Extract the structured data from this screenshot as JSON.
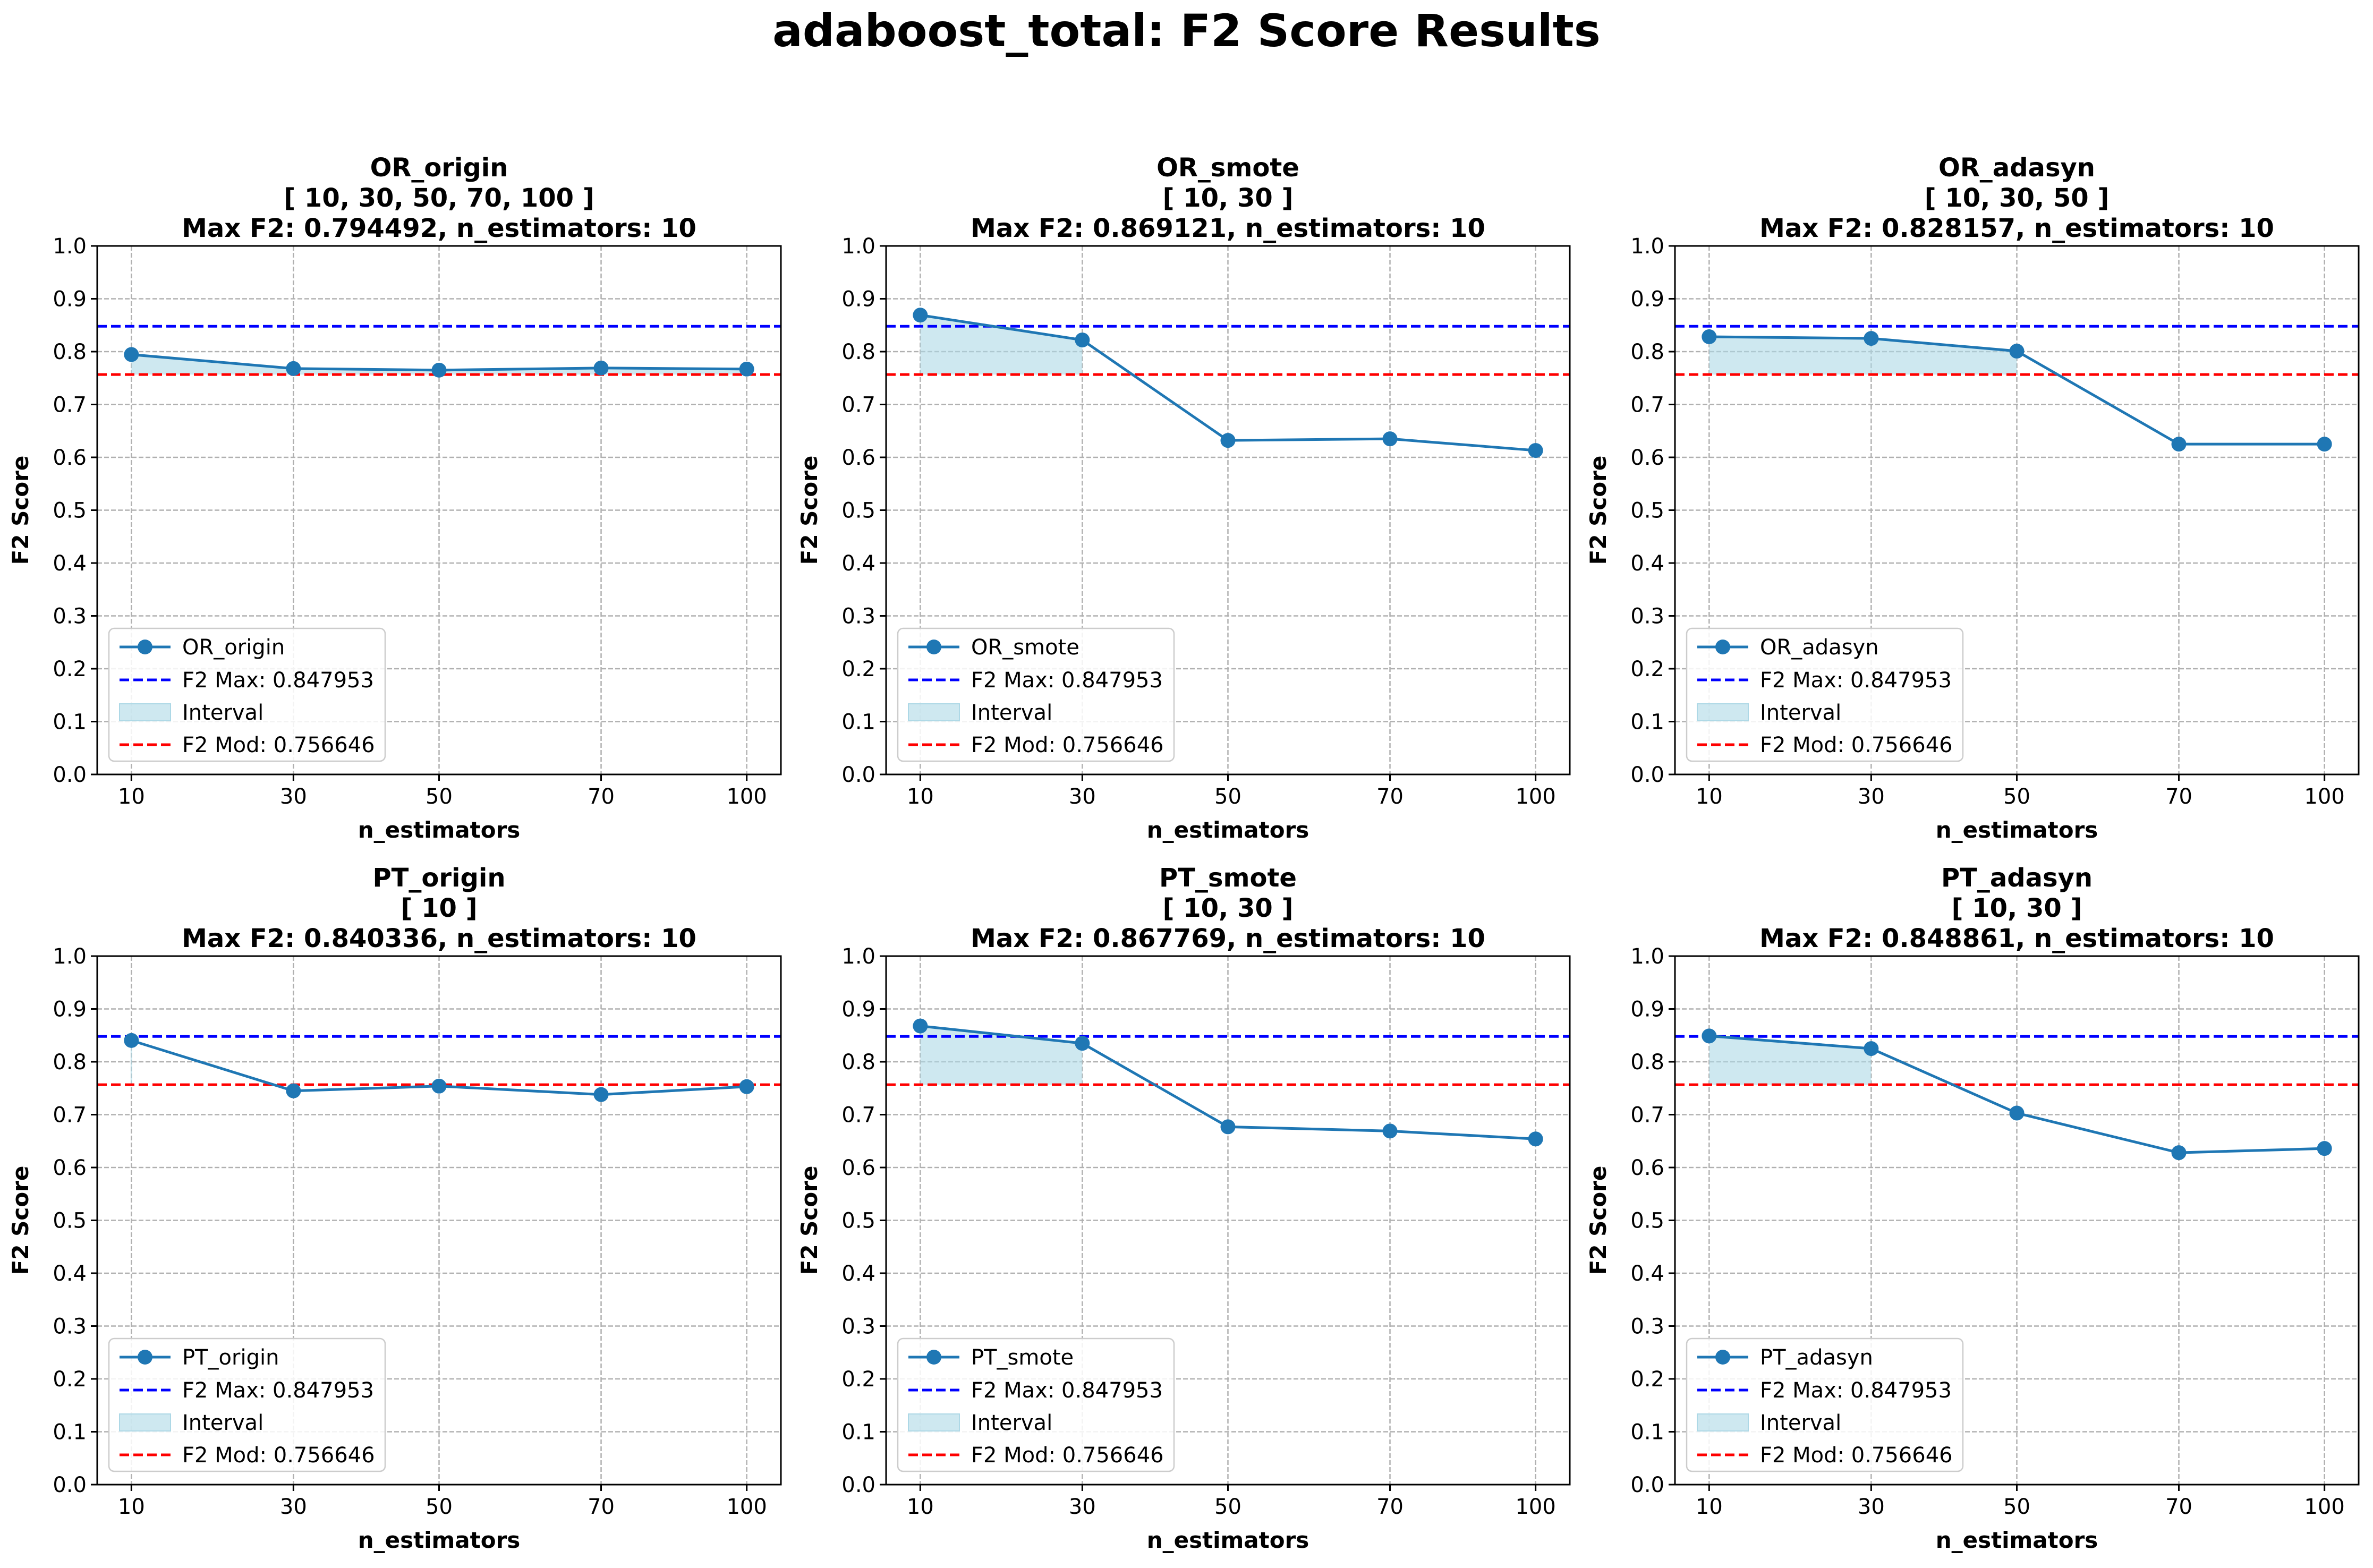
{
  "figure": {
    "title": "adaboost_total: F2 Score Results"
  },
  "colors": {
    "series_line": "#1f77b4",
    "interval_fill": "#add8e6",
    "f2_max_line": "#0000ff",
    "f2_mod_line": "#ff0000",
    "grid": "#b0b0b0"
  },
  "chart_data": [
    {
      "type": "line",
      "title_lines": [
        "OR_origin",
        "[ 10, 30, 50, 70, 100 ]",
        "Max F2: 0.794492, n_estimators: 10"
      ],
      "xlabel": "n_estimators",
      "ylabel": "F2 Score",
      "x": [
        "10",
        "30",
        "50",
        "70",
        "100"
      ],
      "ylim": [
        0,
        1.0
      ],
      "yticks": [
        "0.0",
        "0.1",
        "0.2",
        "0.3",
        "0.4",
        "0.5",
        "0.6",
        "0.7",
        "0.8",
        "0.9",
        "1.0"
      ],
      "series": [
        {
          "name": "OR_origin",
          "values": [
            0.794492,
            0.768,
            0.765,
            0.769,
            0.767
          ]
        }
      ],
      "f2_max": {
        "label": "F2 Max: 0.847953",
        "value": 0.847953
      },
      "f2_mod": {
        "label": "F2 Mod: 0.756646",
        "value": 0.756646
      },
      "interval": {
        "label": "Interval",
        "x_index_range": [
          0,
          4
        ]
      },
      "grid": true,
      "legend_position": "lower-left"
    },
    {
      "type": "line",
      "title_lines": [
        "OR_smote",
        "[ 10, 30 ]",
        "Max F2: 0.869121, n_estimators: 10"
      ],
      "xlabel": "n_estimators",
      "ylabel": "F2 Score",
      "x": [
        "10",
        "30",
        "50",
        "70",
        "100"
      ],
      "ylim": [
        0,
        1.0
      ],
      "yticks": [
        "0.0",
        "0.1",
        "0.2",
        "0.3",
        "0.4",
        "0.5",
        "0.6",
        "0.7",
        "0.8",
        "0.9",
        "1.0"
      ],
      "series": [
        {
          "name": "OR_smote",
          "values": [
            0.869121,
            0.822,
            0.632,
            0.635,
            0.613
          ]
        }
      ],
      "f2_max": {
        "label": "F2 Max: 0.847953",
        "value": 0.847953
      },
      "f2_mod": {
        "label": "F2 Mod: 0.756646",
        "value": 0.756646
      },
      "interval": {
        "label": "Interval",
        "x_index_range": [
          0,
          1
        ]
      },
      "grid": true,
      "legend_position": "lower-left"
    },
    {
      "type": "line",
      "title_lines": [
        "OR_adasyn",
        "[ 10, 30, 50 ]",
        "Max F2: 0.828157, n_estimators: 10"
      ],
      "xlabel": "n_estimators",
      "ylabel": "F2 Score",
      "x": [
        "10",
        "30",
        "50",
        "70",
        "100"
      ],
      "ylim": [
        0,
        1.0
      ],
      "yticks": [
        "0.0",
        "0.1",
        "0.2",
        "0.3",
        "0.4",
        "0.5",
        "0.6",
        "0.7",
        "0.8",
        "0.9",
        "1.0"
      ],
      "series": [
        {
          "name": "OR_adasyn",
          "values": [
            0.828157,
            0.825,
            0.801,
            0.625,
            0.625
          ]
        }
      ],
      "f2_max": {
        "label": "F2 Max: 0.847953",
        "value": 0.847953
      },
      "f2_mod": {
        "label": "F2 Mod: 0.756646",
        "value": 0.756646
      },
      "interval": {
        "label": "Interval",
        "x_index_range": [
          0,
          2
        ]
      },
      "grid": true,
      "legend_position": "lower-left"
    },
    {
      "type": "line",
      "title_lines": [
        "PT_origin",
        "[ 10 ]",
        "Max F2: 0.840336, n_estimators: 10"
      ],
      "xlabel": "n_estimators",
      "ylabel": "F2 Score",
      "x": [
        "10",
        "30",
        "50",
        "70",
        "100"
      ],
      "ylim": [
        0,
        1.0
      ],
      "yticks": [
        "0.0",
        "0.1",
        "0.2",
        "0.3",
        "0.4",
        "0.5",
        "0.6",
        "0.7",
        "0.8",
        "0.9",
        "1.0"
      ],
      "series": [
        {
          "name": "PT_origin",
          "values": [
            0.840336,
            0.745,
            0.754,
            0.738,
            0.753
          ]
        }
      ],
      "f2_max": {
        "label": "F2 Max: 0.847953",
        "value": 0.847953
      },
      "f2_mod": {
        "label": "F2 Mod: 0.756646",
        "value": 0.756646
      },
      "interval": {
        "label": "Interval",
        "x_index_range": [
          0,
          0
        ]
      },
      "grid": true,
      "legend_position": "lower-left"
    },
    {
      "type": "line",
      "title_lines": [
        "PT_smote",
        "[ 10, 30 ]",
        "Max F2: 0.867769, n_estimators: 10"
      ],
      "xlabel": "n_estimators",
      "ylabel": "F2 Score",
      "x": [
        "10",
        "30",
        "50",
        "70",
        "100"
      ],
      "ylim": [
        0,
        1.0
      ],
      "yticks": [
        "0.0",
        "0.1",
        "0.2",
        "0.3",
        "0.4",
        "0.5",
        "0.6",
        "0.7",
        "0.8",
        "0.9",
        "1.0"
      ],
      "series": [
        {
          "name": "PT_smote",
          "values": [
            0.867769,
            0.835,
            0.677,
            0.669,
            0.654
          ]
        }
      ],
      "f2_max": {
        "label": "F2 Max: 0.847953",
        "value": 0.847953
      },
      "f2_mod": {
        "label": "F2 Mod: 0.756646",
        "value": 0.756646
      },
      "interval": {
        "label": "Interval",
        "x_index_range": [
          0,
          1
        ]
      },
      "grid": true,
      "legend_position": "lower-left"
    },
    {
      "type": "line",
      "title_lines": [
        "PT_adasyn",
        "[ 10, 30 ]",
        "Max F2: 0.848861, n_estimators: 10"
      ],
      "xlabel": "n_estimators",
      "ylabel": "F2 Score",
      "x": [
        "10",
        "30",
        "50",
        "70",
        "100"
      ],
      "ylim": [
        0,
        1.0
      ],
      "yticks": [
        "0.0",
        "0.1",
        "0.2",
        "0.3",
        "0.4",
        "0.5",
        "0.6",
        "0.7",
        "0.8",
        "0.9",
        "1.0"
      ],
      "series": [
        {
          "name": "PT_adasyn",
          "values": [
            0.848861,
            0.825,
            0.703,
            0.628,
            0.636
          ]
        }
      ],
      "f2_max": {
        "label": "F2 Max: 0.847953",
        "value": 0.847953
      },
      "f2_mod": {
        "label": "F2 Mod: 0.756646",
        "value": 0.756646
      },
      "interval": {
        "label": "Interval",
        "x_index_range": [
          0,
          1
        ]
      },
      "grid": true,
      "legend_position": "lower-left"
    }
  ]
}
